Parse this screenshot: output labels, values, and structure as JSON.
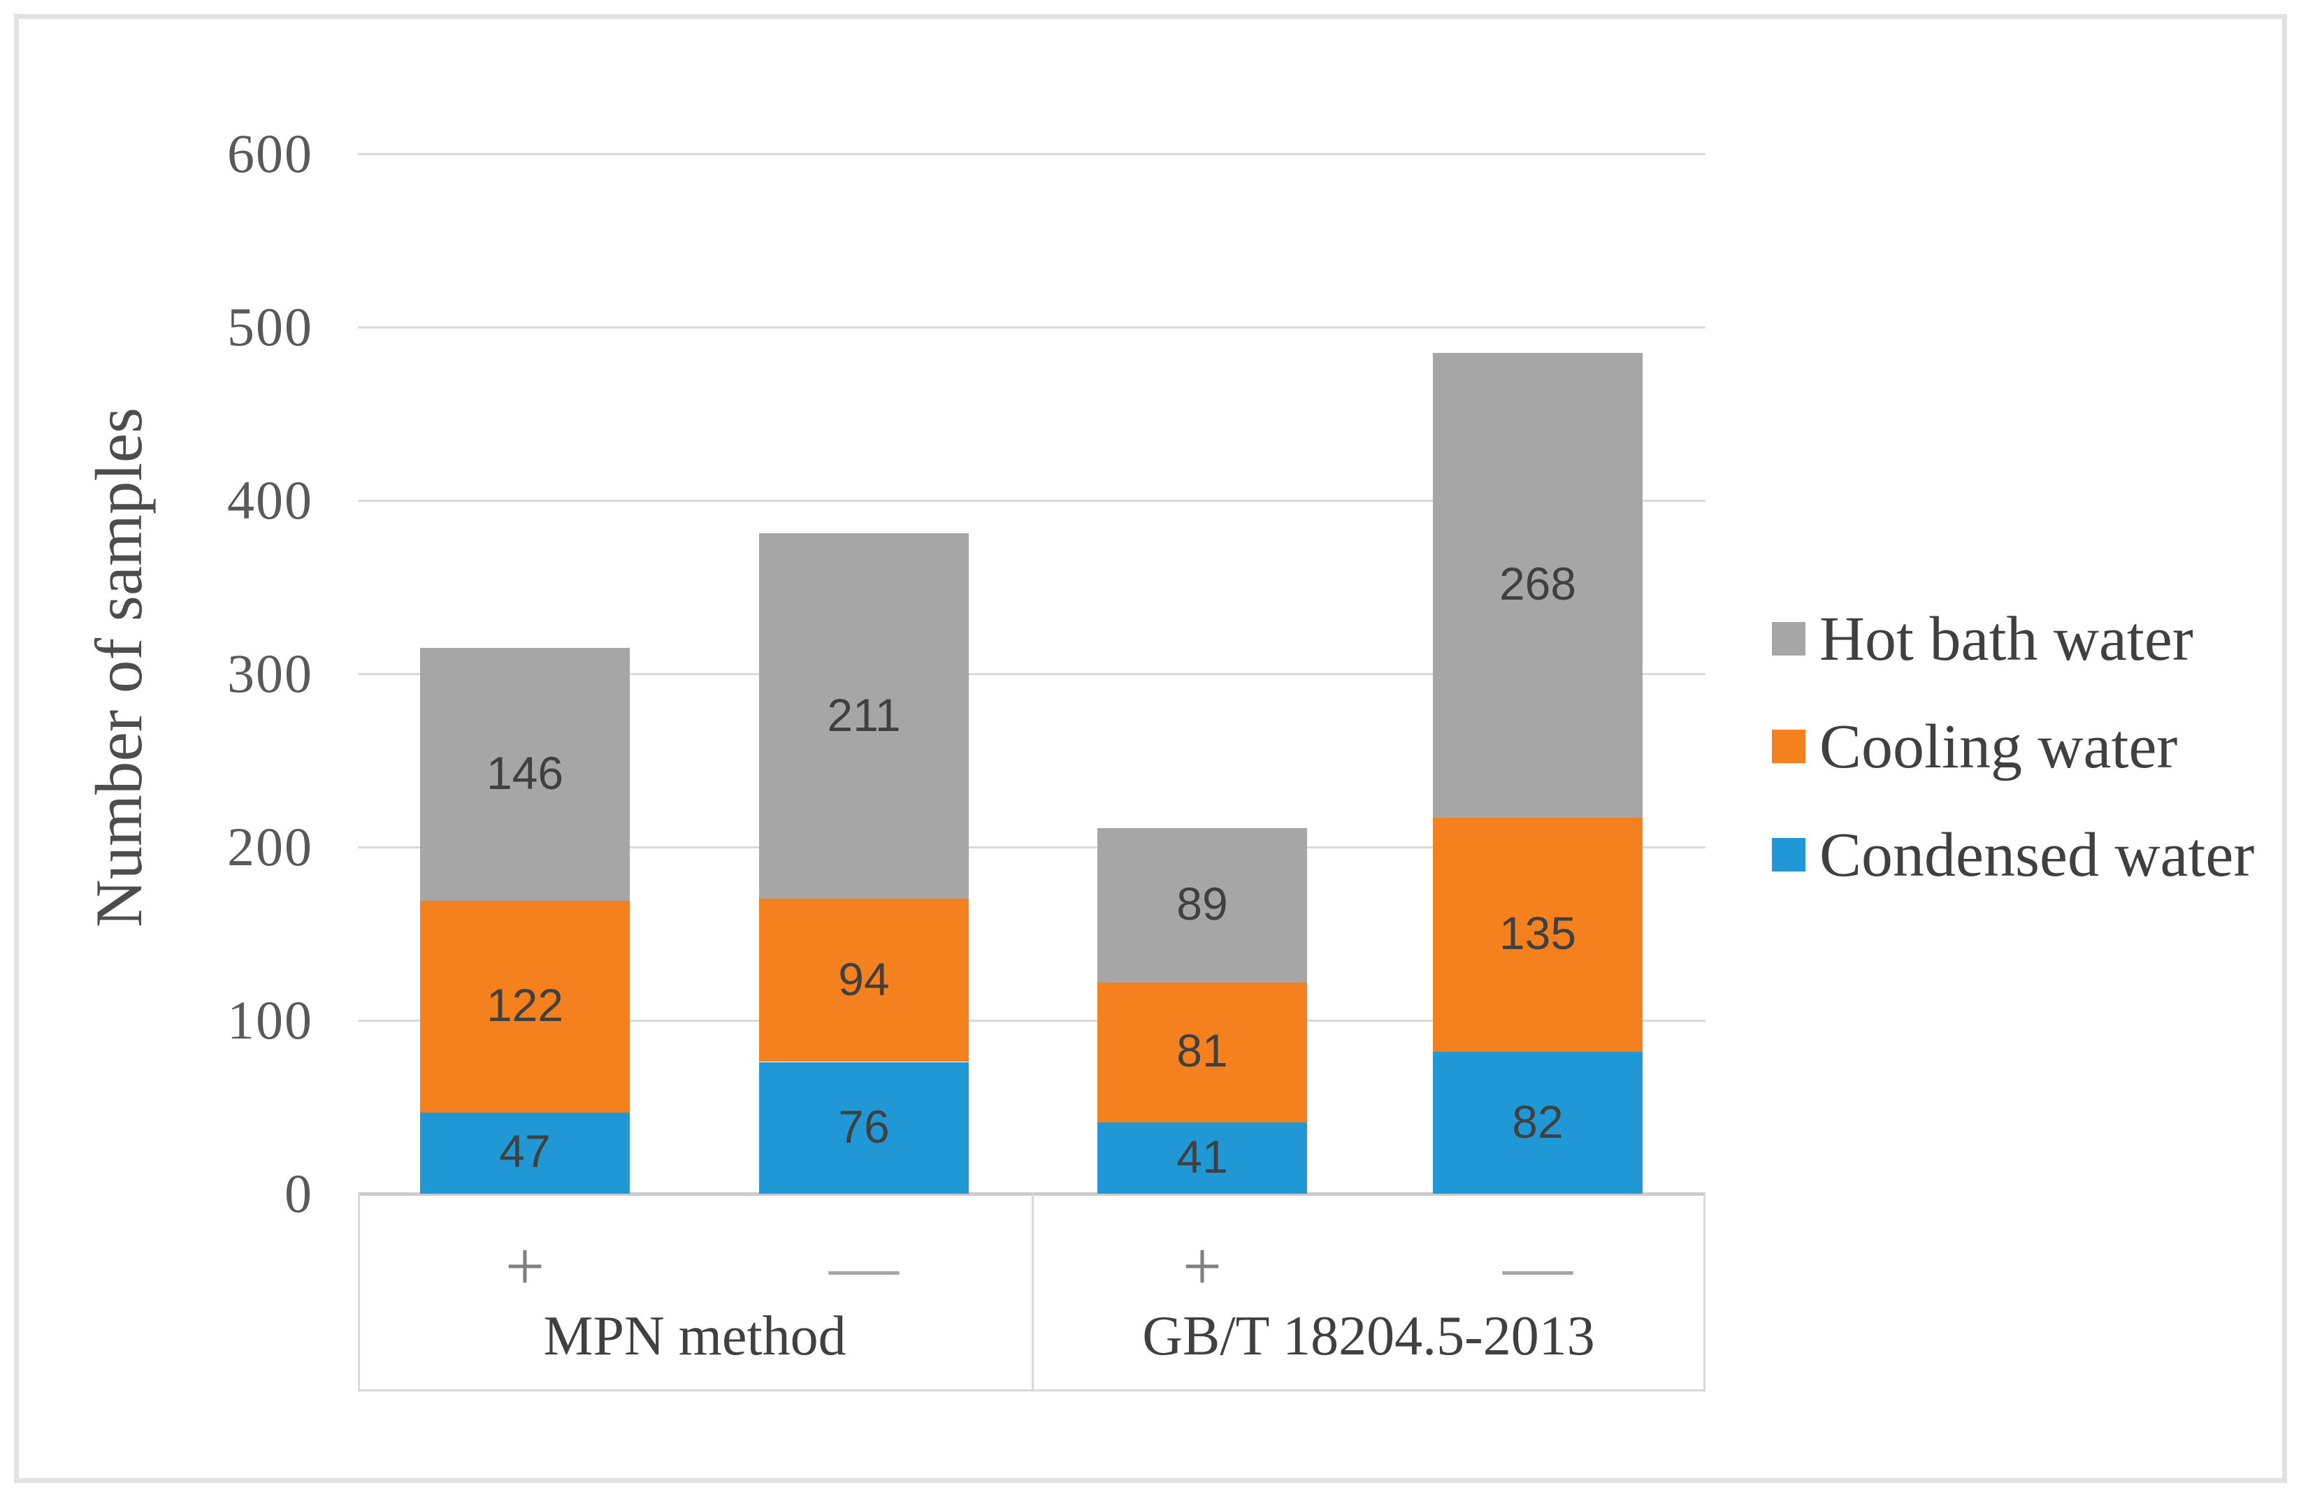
{
  "figure": {
    "background": "#ffffff",
    "border_color": "#e2e2e2"
  },
  "palette": {
    "condensed_water": "#2098d6",
    "cooling_water": "#f5801e",
    "hot_bath_water": "#a6a6a6",
    "gridline": "#d9d9d9",
    "axis_line": "#cbcbcb",
    "tick_text": "#595959",
    "label_text": "#404040",
    "plus_label": "#7f7f7f",
    "minus_label": "#a6a6a6"
  },
  "y_axis": {
    "title": "Number of samples",
    "ticks": [
      0,
      100,
      200,
      300,
      400,
      500,
      600
    ]
  },
  "x_axis": {
    "groups": [
      {
        "label": "MPN method",
        "sublabels": [
          "+",
          "—"
        ]
      },
      {
        "label": "GB/T 18204.5-2013",
        "sublabels": [
          "+",
          "—"
        ]
      }
    ]
  },
  "legend": {
    "position": "right",
    "items": [
      {
        "label": "Hot bath water",
        "color": "#a6a6a6"
      },
      {
        "label": "Cooling water",
        "color": "#f5801e"
      },
      {
        "label": "Condensed water",
        "color": "#2098d6"
      }
    ]
  },
  "chart_data": {
    "type": "bar",
    "stacked": true,
    "title": "",
    "xlabel": "",
    "ylabel": "Number of samples",
    "ylim": [
      0,
      600
    ],
    "ytick_step": 100,
    "grid": true,
    "legend_position": "right",
    "group_labels": [
      "MPN method",
      "GB/T 18204.5-2013"
    ],
    "categories": [
      "MPN method +",
      "MPN method —",
      "GB/T 18204.5-2013 +",
      "GB/T 18204.5-2013 —"
    ],
    "series": [
      {
        "name": "Condensed water",
        "color": "#2098d6",
        "values": [
          47,
          76,
          41,
          82
        ]
      },
      {
        "name": "Cooling water",
        "color": "#f5801e",
        "values": [
          122,
          94,
          81,
          135
        ]
      },
      {
        "name": "Hot bath water",
        "color": "#a6a6a6",
        "values": [
          146,
          211,
          89,
          268
        ]
      }
    ],
    "stack_totals": [
      315,
      381,
      211,
      485
    ],
    "legend_order": [
      "Hot bath water",
      "Cooling water",
      "Condensed water"
    ]
  }
}
